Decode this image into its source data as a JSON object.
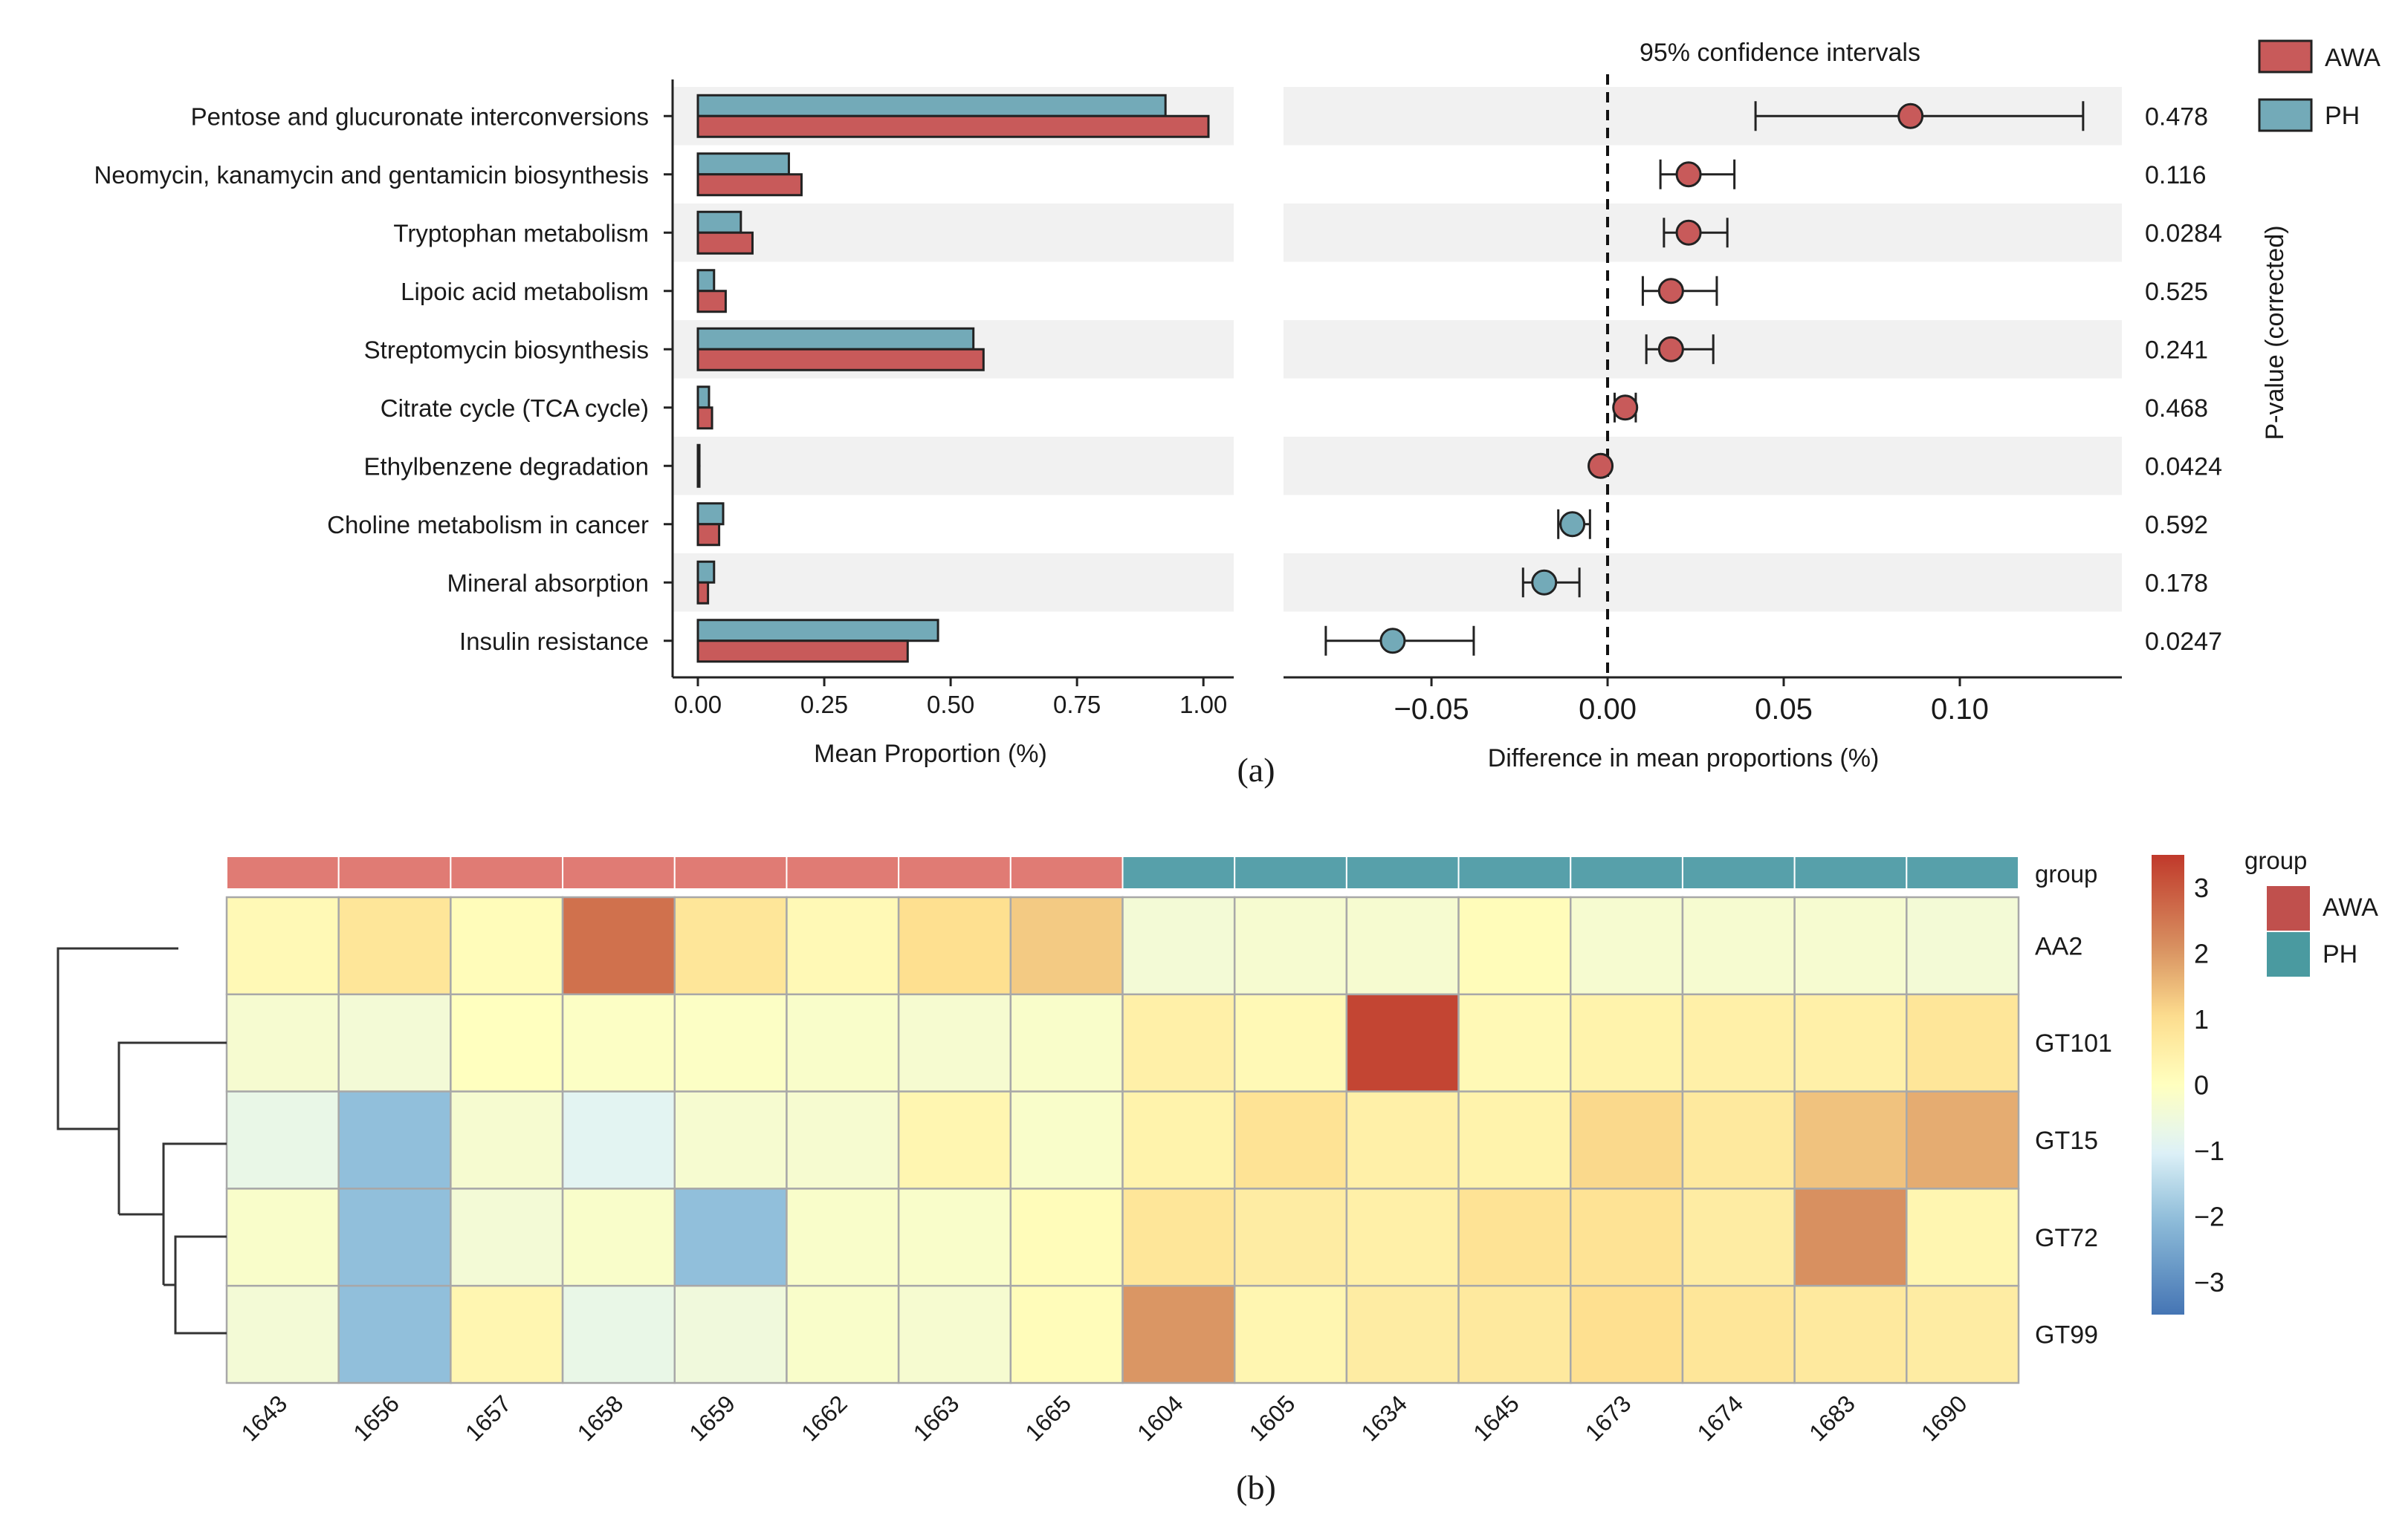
{
  "chart_data": [
    {
      "type": "bar",
      "panel": "a-left",
      "orientation": "horizontal",
      "categories": [
        "Pentose and glucuronate interconversions",
        "Neomycin, kanamycin and gentamicin biosynthesis",
        "Tryptophan metabolism",
        "Lipoic acid metabolism",
        "Streptomycin biosynthesis",
        "Citrate cycle (TCA cycle)",
        "Ethylbenzene degradation",
        "Choline metabolism in cancer",
        "Mineral absorption",
        "Insulin resistance"
      ],
      "series": [
        {
          "name": "PH",
          "color": "#73aab8",
          "values": [
            0.925,
            0.18,
            0.085,
            0.032,
            0.545,
            0.022,
            0.003,
            0.05,
            0.032,
            0.475
          ]
        },
        {
          "name": "AWA",
          "color": "#c85a5a",
          "values": [
            1.01,
            0.205,
            0.108,
            0.055,
            0.565,
            0.028,
            0.003,
            0.042,
            0.02,
            0.415
          ]
        }
      ],
      "xlabel": "Mean Proportion (%)",
      "xlim": [
        -0.05,
        1.06
      ],
      "xticks": [
        "0.00",
        "0.25",
        "0.50",
        "0.75",
        "1.00"
      ],
      "xtick_values": [
        0,
        0.25,
        0.5,
        0.75,
        1.0
      ]
    },
    {
      "type": "scatter",
      "panel": "a-right",
      "title": "95% confidence intervals",
      "xlabel": "Difference in mean proportions (%)",
      "ylabel_right": "P-value (corrected)",
      "xlim": [
        -0.092,
        0.146
      ],
      "xticks": [
        "−0.05",
        "0.00",
        "0.05",
        "0.10"
      ],
      "xtick_values": [
        -0.05,
        0,
        0.05,
        0.1
      ],
      "points": [
        {
          "diff": 0.086,
          "low": 0.042,
          "high": 0.135,
          "group": "AWA",
          "p": "0.478"
        },
        {
          "diff": 0.023,
          "low": 0.015,
          "high": 0.036,
          "group": "AWA",
          "p": "0.116"
        },
        {
          "diff": 0.023,
          "low": 0.016,
          "high": 0.034,
          "group": "AWA",
          "p": "0.0284"
        },
        {
          "diff": 0.018,
          "low": 0.01,
          "high": 0.031,
          "group": "AWA",
          "p": "0.525"
        },
        {
          "diff": 0.018,
          "low": 0.011,
          "high": 0.03,
          "group": "AWA",
          "p": "0.241"
        },
        {
          "diff": 0.005,
          "low": 0.002,
          "high": 0.008,
          "group": "AWA",
          "p": "0.468"
        },
        {
          "diff": -0.002,
          "low": -0.002,
          "high": -0.002,
          "group": "AWA",
          "p": "0.0424"
        },
        {
          "diff": -0.01,
          "low": -0.014,
          "high": -0.005,
          "group": "PH",
          "p": "0.592"
        },
        {
          "diff": -0.018,
          "low": -0.024,
          "high": -0.008,
          "group": "PH",
          "p": "0.178"
        },
        {
          "diff": -0.061,
          "low": -0.08,
          "high": -0.038,
          "group": "PH",
          "p": "0.0247"
        }
      ]
    },
    {
      "type": "heatmap",
      "panel": "b",
      "columns": [
        "1643",
        "1656",
        "1657",
        "1658",
        "1659",
        "1662",
        "1663",
        "1665",
        "1604",
        "1605",
        "1634",
        "1645",
        "1673",
        "1674",
        "1683",
        "1690"
      ],
      "column_groups": [
        "AWA",
        "AWA",
        "AWA",
        "AWA",
        "AWA",
        "AWA",
        "AWA",
        "AWA",
        "PH",
        "PH",
        "PH",
        "PH",
        "PH",
        "PH",
        "PH",
        "PH"
      ],
      "rows": [
        "AA2",
        "GT101",
        "GT15",
        "GT72",
        "GT99"
      ],
      "values": [
        [
          0.2,
          0.8,
          0.1,
          2.6,
          0.8,
          0.2,
          1.0,
          1.3,
          -0.4,
          -0.3,
          -0.3,
          0.1,
          -0.3,
          -0.3,
          -0.3,
          -0.4
        ],
        [
          -0.3,
          -0.4,
          0.0,
          -0.1,
          -0.1,
          -0.2,
          -0.3,
          -0.2,
          0.5,
          0.2,
          3.3,
          0.2,
          0.4,
          0.5,
          0.5,
          0.8
        ],
        [
          -0.7,
          -2.0,
          -0.3,
          -0.9,
          -0.3,
          -0.3,
          0.3,
          -0.2,
          0.4,
          0.9,
          0.5,
          0.4,
          1.1,
          0.7,
          1.4,
          1.7
        ],
        [
          -0.2,
          -2.0,
          -0.4,
          -0.2,
          -2.0,
          -0.2,
          -0.2,
          0.1,
          0.8,
          0.6,
          0.5,
          0.9,
          0.9,
          0.6,
          2.1,
          0.3
        ],
        [
          -0.4,
          -2.0,
          0.3,
          -0.7,
          -0.5,
          -0.2,
          -0.3,
          0.1,
          2.0,
          0.3,
          0.6,
          0.7,
          1.0,
          0.8,
          0.7,
          0.6
        ]
      ],
      "row_label_header": "group",
      "colorbar": {
        "range": [
          -3.5,
          3.5
        ],
        "ticks": [
          "3",
          "2",
          "1",
          "0",
          "−1",
          "−2",
          "−3"
        ],
        "tick_values": [
          3,
          2,
          1,
          0,
          -1,
          -2,
          -3
        ]
      },
      "legend_title": "group",
      "group_colors": {
        "AWA": "#e07b74",
        "PH": "#57a0aa"
      },
      "legend_colors": {
        "AWA": "#c0504d",
        "PH": "#4a9aa0"
      }
    }
  ],
  "legend": {
    "items": [
      {
        "label": "AWA",
        "color": "#c85a5a"
      },
      {
        "label": "PH",
        "color": "#73aab8"
      }
    ]
  },
  "captions": {
    "a": "(a)",
    "b": "(b)"
  }
}
